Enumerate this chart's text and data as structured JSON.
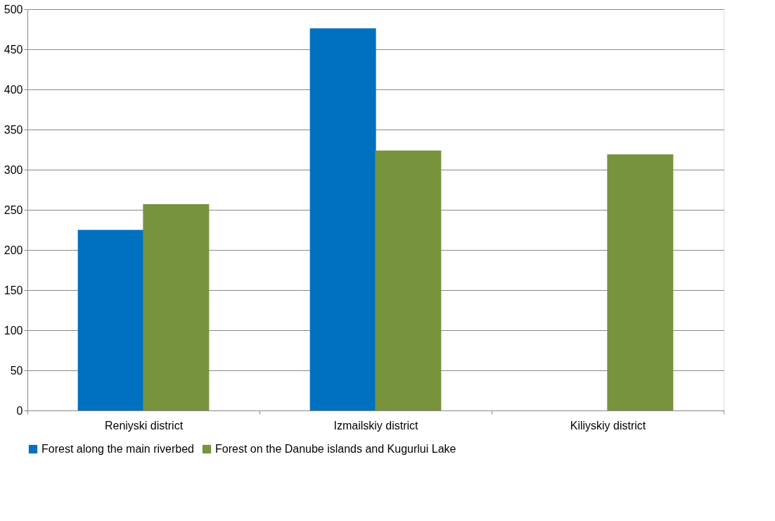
{
  "chart_data": {
    "type": "bar",
    "categories": [
      "Reniyski district",
      "Izmailskiy district",
      "Kiliyskiy district"
    ],
    "series": [
      {
        "name": "Forest along the main riverbed",
        "color": "#0070c0",
        "values": [
          225,
          476,
          null
        ]
      },
      {
        "name": "Forest on the Danube islands and Kugurlui Lake",
        "color": "#77933c",
        "values": [
          257,
          324,
          319
        ]
      }
    ],
    "ylim": [
      0,
      500
    ],
    "yticks": [
      0,
      50,
      100,
      150,
      200,
      250,
      300,
      350,
      400,
      450,
      500
    ],
    "grid": "y",
    "legend": "bottom"
  }
}
